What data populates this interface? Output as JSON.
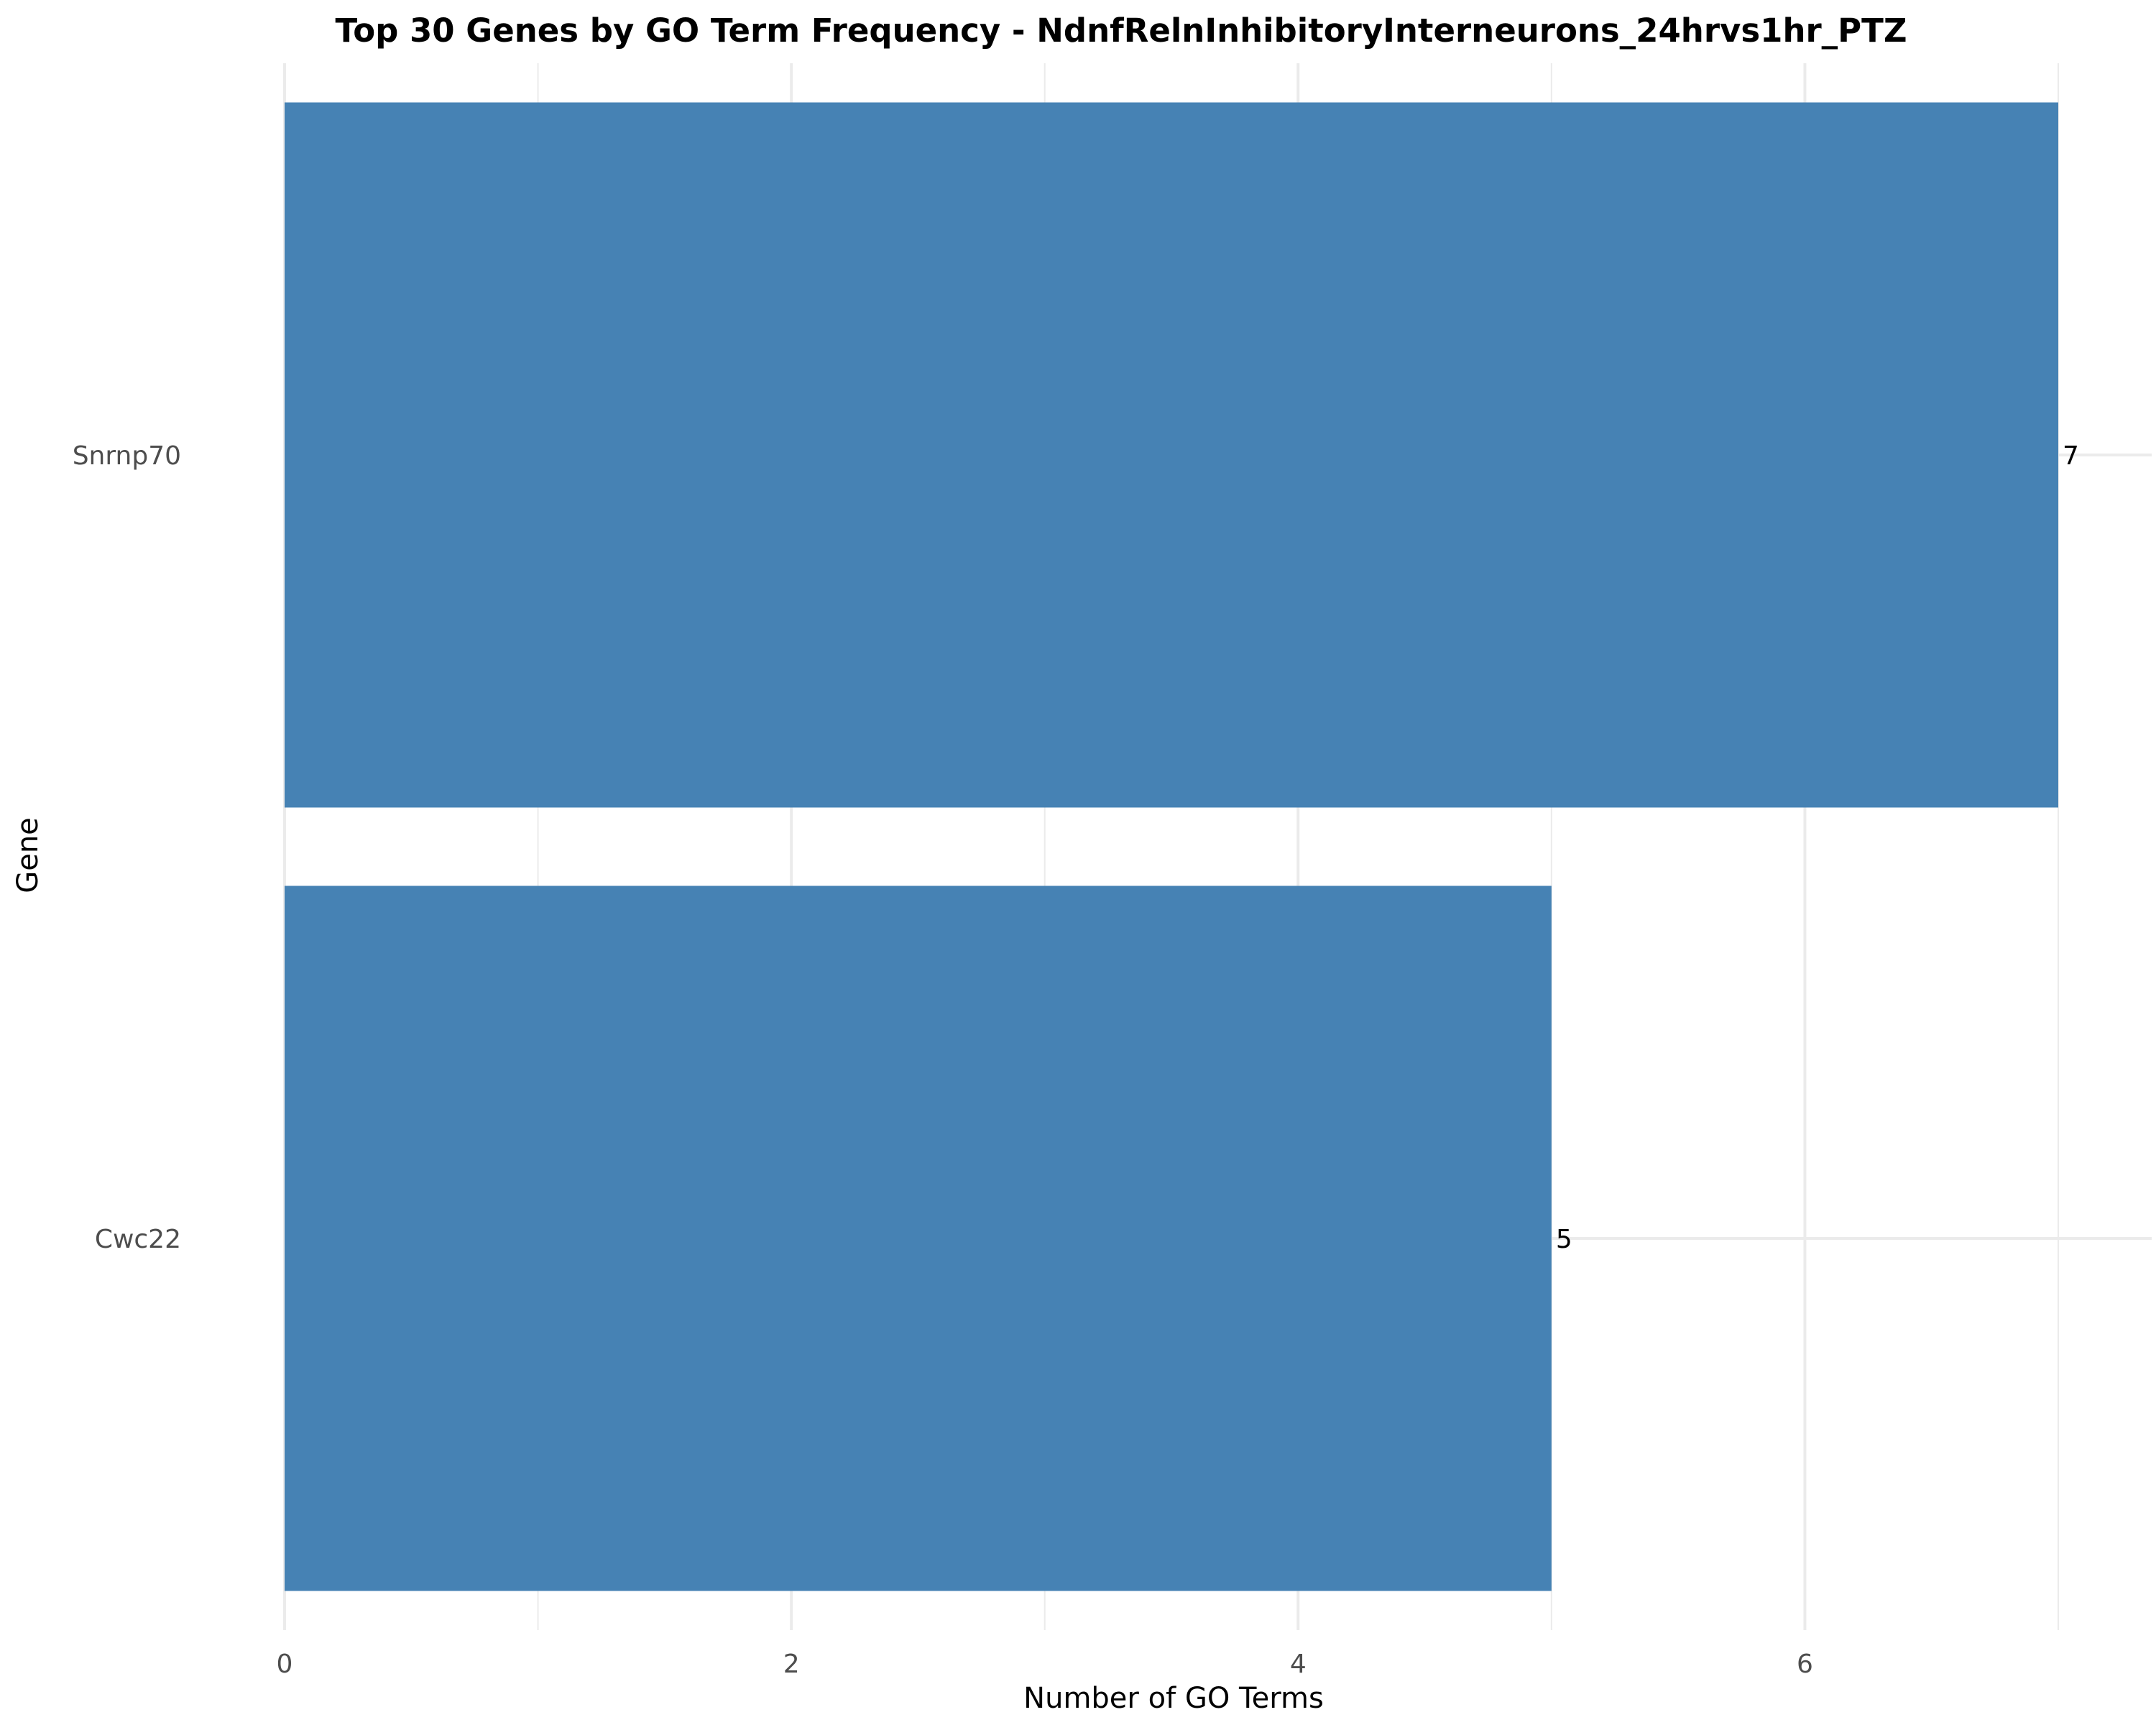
{
  "chart_data": {
    "type": "bar",
    "orientation": "horizontal",
    "title": "Top 30 Genes by GO Term Frequency - NdnfRelnInhibitoryInterneurons_24hrvs1hr_PTZ",
    "xlabel": "Number of GO Terms",
    "ylabel": "Gene",
    "categories": [
      "Snrnp70",
      "Cwc22"
    ],
    "values": [
      7,
      5
    ],
    "data_labels": [
      "7",
      "5"
    ],
    "xlim": [
      0,
      7.35
    ],
    "xticks": [
      0,
      2,
      4,
      6
    ],
    "xtick_labels": [
      "0",
      "2",
      "4",
      "6"
    ],
    "grid": true,
    "bar_color": "#4682b4"
  }
}
